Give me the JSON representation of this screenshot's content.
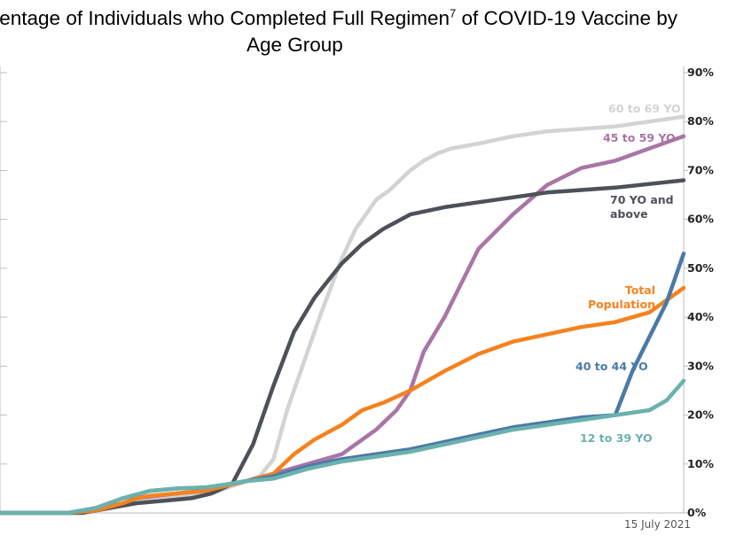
{
  "chart_data": {
    "type": "line",
    "title_part1": "centage of Individuals who Completed Full Regimen",
    "title_sup": "7",
    "title_part2": " of COVID-19 Vaccine by",
    "title_line2": "Age Group",
    "date_label": "15 July 2021",
    "ylim": [
      0,
      90
    ],
    "y_ticks": [
      "0%",
      "10%",
      "20%",
      "30%",
      "40%",
      "50%",
      "60%",
      "70%",
      "80%",
      "90%"
    ],
    "y_axis_side": "right",
    "grid": false,
    "legend": "inline labels",
    "series": [
      {
        "name": "60 to 69 YO",
        "label_lines": [
          "60 to 69 YO"
        ],
        "color": "#d3d3d3",
        "x": [
          0,
          0.1,
          0.14,
          0.18,
          0.2,
          0.22,
          0.24,
          0.26,
          0.3,
          0.32,
          0.34,
          0.36,
          0.38,
          0.4,
          0.42,
          0.45,
          0.47,
          0.5,
          0.52,
          0.55,
          0.57,
          0.6,
          0.62,
          0.64,
          0.66,
          0.7,
          0.75,
          0.8,
          0.9,
          1.0
        ],
        "y": [
          0,
          0,
          0.5,
          1.5,
          2.5,
          3.0,
          3.3,
          3.5,
          3.7,
          4.5,
          5.5,
          6.5,
          7.5,
          11,
          21,
          33,
          41,
          52,
          58,
          64,
          66,
          70,
          72,
          73.5,
          74.5,
          75.5,
          77,
          78,
          79,
          81
        ]
      },
      {
        "name": "45 to 59 YO",
        "label_lines": [
          "45 to 59 YO"
        ],
        "color": "#a876a6",
        "x": [
          0,
          0.1,
          0.14,
          0.18,
          0.2,
          0.23,
          0.26,
          0.3,
          0.33,
          0.36,
          0.4,
          0.45,
          0.5,
          0.55,
          0.58,
          0.6,
          0.62,
          0.65,
          0.7,
          0.75,
          0.8,
          0.85,
          0.9,
          1.0
        ],
        "y": [
          0,
          0,
          0.5,
          2,
          3,
          3.5,
          4,
          4.5,
          5.5,
          6.5,
          8,
          10,
          12,
          17,
          21,
          25,
          33,
          40,
          54,
          61,
          67,
          70.5,
          72,
          77
        ]
      },
      {
        "name": "70 YO and above",
        "label_lines": [
          "70 YO and",
          "above"
        ],
        "color": "#4d5158",
        "x": [
          0,
          0.12,
          0.16,
          0.2,
          0.24,
          0.28,
          0.31,
          0.34,
          0.37,
          0.4,
          0.43,
          0.46,
          0.5,
          0.53,
          0.56,
          0.6,
          0.65,
          0.7,
          0.75,
          0.8,
          0.85,
          0.9,
          1.0
        ],
        "y": [
          0,
          0,
          1,
          2,
          2.5,
          3,
          4,
          6,
          14,
          26,
          37,
          44,
          51,
          55,
          58,
          61,
          62.5,
          63.5,
          64.5,
          65.5,
          66,
          66.5,
          68
        ]
      },
      {
        "name": "Total Population",
        "label_lines": [
          "Total",
          "Population"
        ],
        "color": "#f5821f",
        "x": [
          0,
          0.1,
          0.14,
          0.18,
          0.2,
          0.22,
          0.26,
          0.3,
          0.33,
          0.36,
          0.4,
          0.43,
          0.46,
          0.5,
          0.53,
          0.56,
          0.6,
          0.65,
          0.7,
          0.75,
          0.8,
          0.85,
          0.9,
          0.95,
          1.0
        ],
        "y": [
          0,
          0,
          0.5,
          2,
          3,
          3.5,
          4,
          4.5,
          5.5,
          6.5,
          8,
          12,
          15,
          18,
          21,
          22.5,
          25,
          29,
          32.5,
          35,
          36.5,
          38,
          39,
          41,
          46
        ]
      },
      {
        "name": "40 to 44 YO",
        "label_lines": [
          "40 to 44 YO"
        ],
        "color": "#4a7aa7",
        "x": [
          0,
          0.1,
          0.14,
          0.18,
          0.22,
          0.26,
          0.3,
          0.33,
          0.36,
          0.4,
          0.45,
          0.5,
          0.55,
          0.6,
          0.65,
          0.7,
          0.75,
          0.8,
          0.85,
          0.9,
          0.925,
          0.95,
          0.975,
          1.0
        ],
        "y": [
          0,
          0,
          1,
          3,
          4.5,
          5,
          5.2,
          5.8,
          6.5,
          7.5,
          9.5,
          11,
          12,
          13,
          14.5,
          16,
          17.5,
          18.5,
          19.5,
          20,
          29,
          36,
          43,
          53
        ]
      },
      {
        "name": "12 to 39 YO",
        "label_lines": [
          "12 to 39 YO"
        ],
        "color": "#6bb1ad",
        "x": [
          0,
          0.1,
          0.14,
          0.18,
          0.22,
          0.26,
          0.3,
          0.33,
          0.36,
          0.4,
          0.45,
          0.5,
          0.55,
          0.6,
          0.65,
          0.7,
          0.75,
          0.8,
          0.85,
          0.9,
          0.95,
          0.975,
          1.0
        ],
        "y": [
          0,
          0,
          1,
          3,
          4.5,
          5,
          5.2,
          5.8,
          6.5,
          7,
          9,
          10.5,
          11.5,
          12.5,
          14,
          15.5,
          17,
          18,
          19,
          20,
          21,
          23,
          27
        ]
      }
    ]
  }
}
